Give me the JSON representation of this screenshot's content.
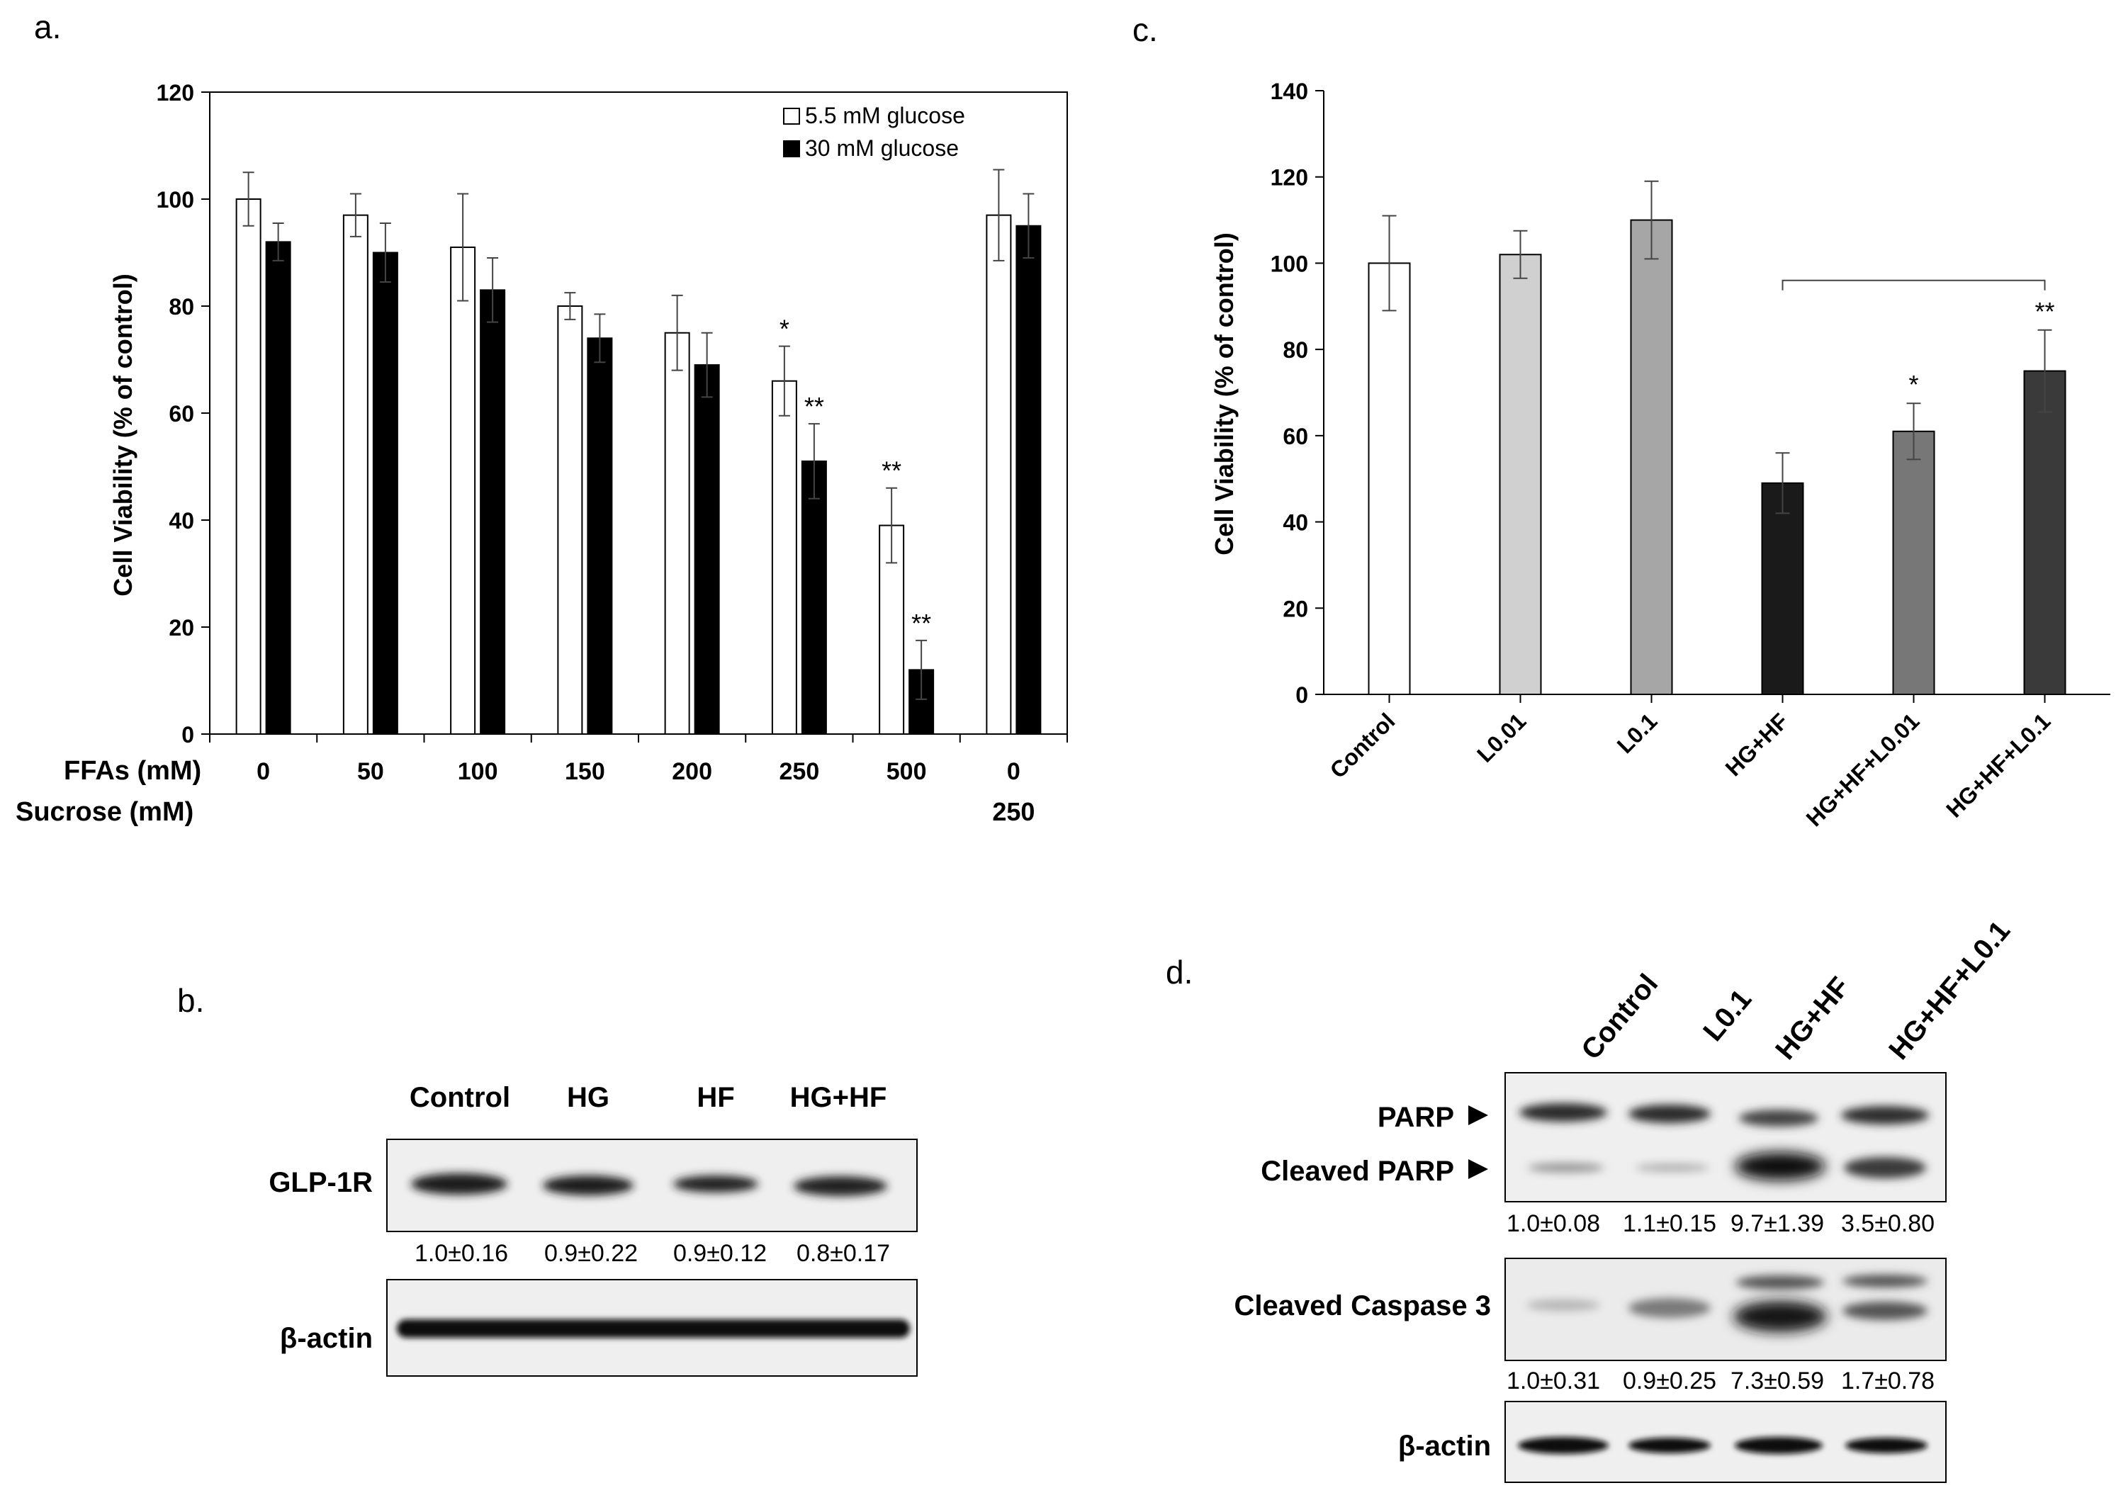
{
  "panel_labels": {
    "a": "a.",
    "b": "b.",
    "c": "c.",
    "d": "d."
  },
  "colors": {
    "white_bar": "#ffffff",
    "black_bar": "#000000",
    "L001_bar": "#d0d0d0",
    "L01_bar": "#a6a6a6",
    "HGHF_bar": "#1a1a1a",
    "HGHF_L001_bar": "#777777",
    "HGHF_L01_bar": "#3a3a3a",
    "blot_bg": "#f0f0f0",
    "band": "#151515"
  },
  "chart_data": [
    {
      "id": "a",
      "type": "bar",
      "ylabel": "Cell Viability (% of control)",
      "ylim": [
        0,
        120
      ],
      "yticks": [
        "0",
        "20",
        "40",
        "60",
        "80",
        "100",
        "120"
      ],
      "row1_label": "FFAs (mM)",
      "row2_label": "Sucrose  (mM)",
      "categories": [
        "0",
        "50",
        "100",
        "150",
        "200",
        "250",
        "500",
        "0"
      ],
      "sucrose_labels": [
        "",
        "",
        "",
        "",
        "",
        "",
        "",
        "250"
      ],
      "series": [
        {
          "name": "5.5 mM glucose",
          "values": [
            100,
            97,
            91,
            80,
            75,
            66,
            39,
            97
          ],
          "errors": [
            5,
            4,
            10,
            2.5,
            7,
            6.5,
            7,
            8.5
          ],
          "sig": [
            "",
            "",
            "",
            "",
            "",
            "*",
            "**",
            ""
          ]
        },
        {
          "name": "30 mM  glucose",
          "values": [
            92,
            90,
            83,
            74,
            69,
            51,
            12,
            95
          ],
          "errors": [
            3.5,
            5.5,
            6,
            4.5,
            6,
            7,
            5.5,
            6
          ],
          "sig": [
            "",
            "",
            "",
            "",
            "",
            "**",
            "**",
            ""
          ]
        }
      ]
    },
    {
      "id": "c",
      "type": "bar",
      "ylabel": "Cell Viability (% of control)",
      "ylim": [
        0,
        140
      ],
      "yticks": [
        "0",
        "20",
        "40",
        "60",
        "80",
        "100",
        "120",
        "140"
      ],
      "categories": [
        "Control",
        "L0.01",
        "L0.1",
        "HG+HF",
        "HG+HF+L0.01",
        "HG+HF+L0.1"
      ],
      "values": [
        100,
        102,
        110,
        49,
        61,
        75
      ],
      "errors": [
        11,
        5.5,
        9,
        7,
        6.5,
        9.5
      ],
      "sig": [
        "",
        "",
        "",
        "",
        "*",
        "**"
      ]
    }
  ],
  "blot_b": {
    "lanes": [
      "Control",
      "HG",
      "HF",
      "HG+HF"
    ],
    "rows": [
      {
        "label": "GLP-1R",
        "quant": [
          "1.0±0.16",
          "0.9±0.22",
          "0.9±0.12",
          "0.8±0.17"
        ]
      },
      {
        "label": "β-actin",
        "quant": []
      }
    ]
  },
  "blot_d": {
    "lanes": [
      "Control",
      "L0.1",
      "HG+HF",
      "HG+HF+L0.1"
    ],
    "parp_label": "PARP",
    "cleaved_parp_label": "Cleaved PARP",
    "parp_quant": [
      "1.0±0.08",
      "1.1±0.15",
      "9.7±1.39",
      "3.5±0.80"
    ],
    "caspase_label": "Cleaved Caspase 3",
    "caspase_quant": [
      "1.0±0.31",
      "0.9±0.25",
      "7.3±0.59",
      "1.7±0.78"
    ],
    "actin_label": "β-actin"
  }
}
